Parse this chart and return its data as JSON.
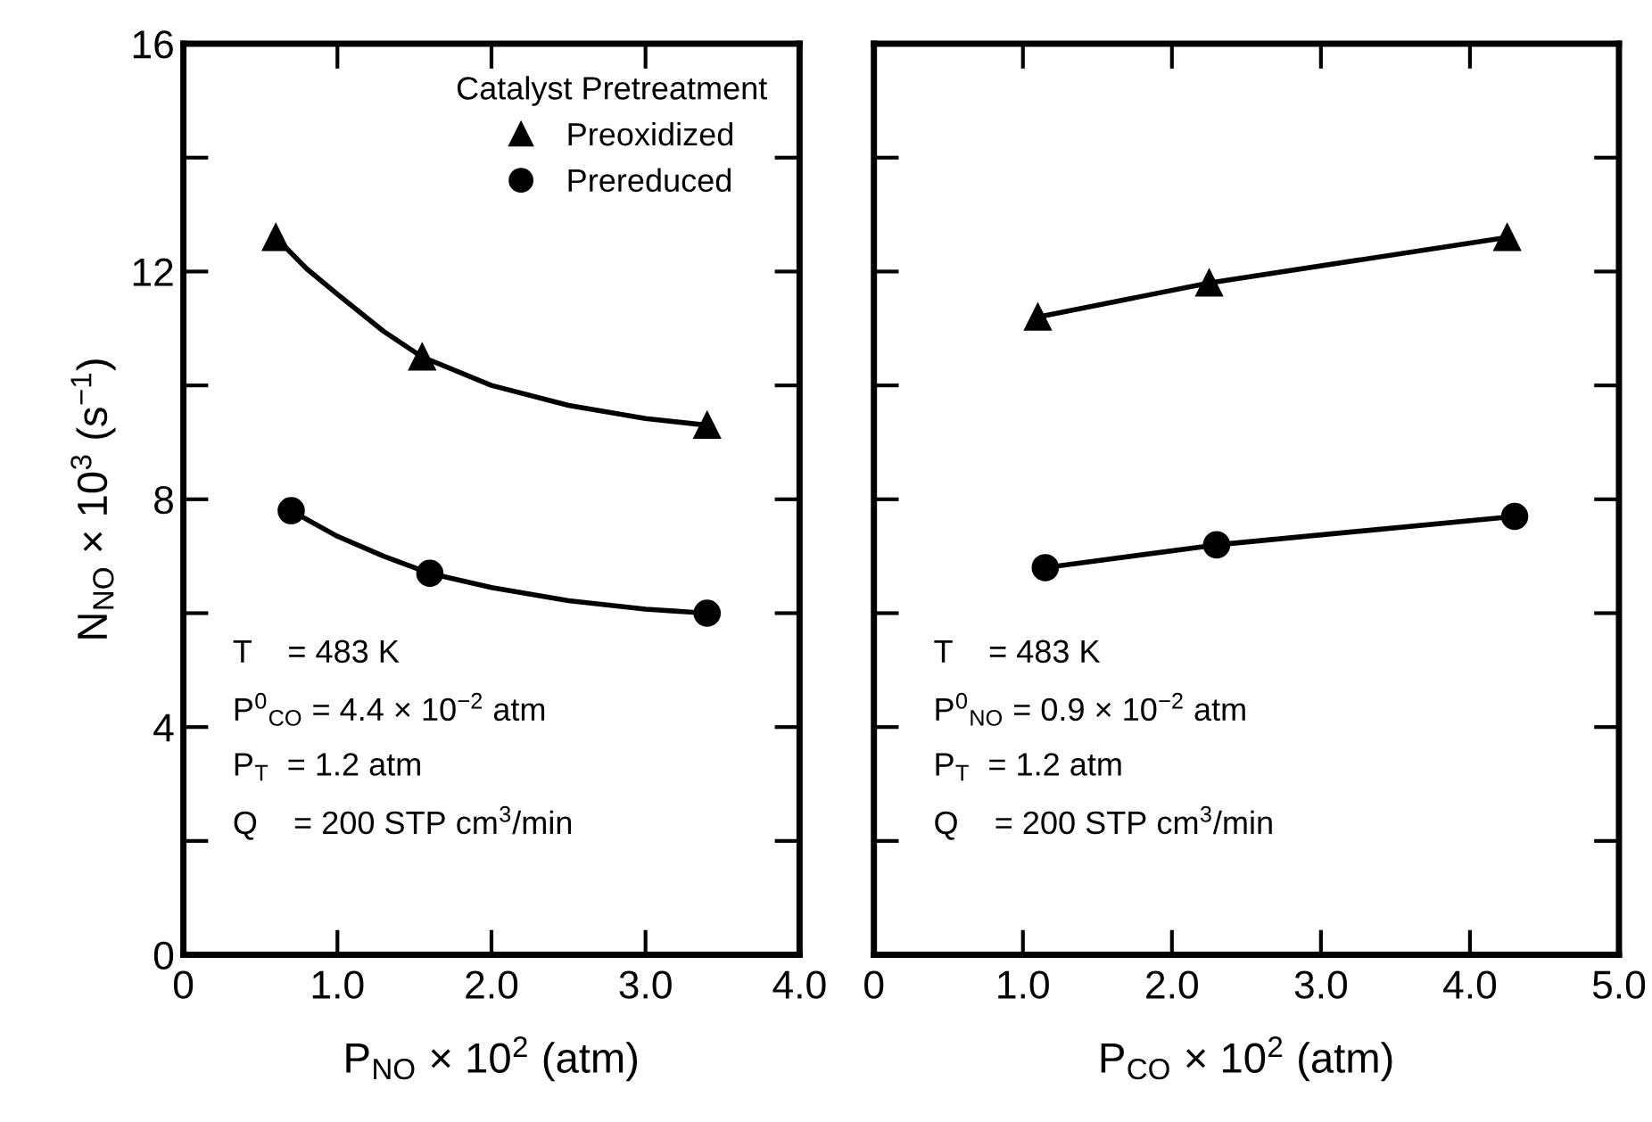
{
  "chart_data": [
    {
      "type": "line",
      "xlabel": "P$_{NO}$ × 10$^{2}$ (atm)",
      "ylabel": "N$_{NO}$ × 10$^{3}$ (s$^{−1}$)",
      "legend_title": "Catalyst Pretreatment",
      "legend": "top right",
      "grid": false,
      "xlim": [
        0,
        4
      ],
      "xticks": [
        0,
        {
          "value": 1,
          "label": "1.0"
        },
        {
          "value": 2,
          "label": "2.0"
        },
        {
          "value": 3,
          "label": "3.0"
        },
        {
          "value": 4,
          "label": "4.0"
        }
      ],
      "ylim": [
        0,
        16
      ],
      "yticks": [
        0,
        {
          "value": 2,
          "label": null
        },
        4,
        {
          "value": 6,
          "label": null
        },
        8,
        {
          "value": 10,
          "label": null
        },
        12,
        {
          "value": 14,
          "label": null
        },
        16
      ],
      "series": [
        {
          "type": "line",
          "color": "#000000",
          "marker": "none",
          "x": [
            0.6,
            0.8,
            1.0,
            1.3,
            1.55,
            2.0,
            2.5,
            3.0,
            3.4
          ],
          "values": [
            12.6,
            12.05,
            11.6,
            10.95,
            10.5,
            10.0,
            9.65,
            9.42,
            9.3
          ]
        },
        {
          "type": "line",
          "color": "#000000",
          "marker": "none",
          "x": [
            0.7,
            1.0,
            1.3,
            1.6,
            2.0,
            2.5,
            3.0,
            3.4
          ],
          "values": [
            7.8,
            7.35,
            7.0,
            6.7,
            6.45,
            6.22,
            6.07,
            6.0
          ]
        },
        {
          "type": "scatter",
          "name": "Preoxidized",
          "color": "#000000",
          "marker": "triangle",
          "x": [
            0.6,
            1.55,
            3.4
          ],
          "values": [
            12.6,
            10.5,
            9.3
          ]
        },
        {
          "type": "scatter",
          "name": "Prereduced",
          "color": "#000000",
          "marker": "circle",
          "x": [
            0.7,
            1.6,
            3.4
          ],
          "values": [
            7.8,
            6.7,
            6.0
          ]
        }
      ],
      "annotations": [
        "T    = 483 K",
        "P$^{0}$$_{CO}$ = 4.4 × 10$^{−2}$ atm",
        "P$_{T}$  = 1.2 atm",
        "Q    = 200 STP cm$^{3}$/min"
      ]
    },
    {
      "type": "line",
      "xlabel": "P$_{CO}$ × 10$^{2}$ (atm)",
      "grid": false,
      "tick_labels": "x",
      "xlim": [
        0,
        5
      ],
      "xticks": [
        0,
        {
          "value": 1,
          "label": "1.0"
        },
        {
          "value": 2,
          "label": "2.0"
        },
        {
          "value": 3,
          "label": "3.0"
        },
        {
          "value": 4,
          "label": "4.0"
        },
        {
          "value": 5,
          "label": "5.0"
        }
      ],
      "ylim": [
        0,
        16
      ],
      "yticks": [
        0,
        2,
        4,
        6,
        8,
        10,
        12,
        14,
        16
      ],
      "series": [
        {
          "color": "#000000",
          "marker": "triangle",
          "x": [
            1.1,
            2.25,
            4.25
          ],
          "values": [
            11.2,
            11.8,
            12.6
          ]
        },
        {
          "color": "#000000",
          "marker": "circle",
          "x": [
            1.15,
            2.3,
            4.3
          ],
          "values": [
            6.8,
            7.2,
            7.7
          ]
        }
      ],
      "annotations": [
        "T    = 483 K",
        "P$^{0}$$_{NO}$ = 0.9 × 10$^{−2}$ atm",
        "P$_{T}$  = 1.2 atm",
        "Q    = 200 STP cm$^{3}$/min"
      ]
    }
  ]
}
